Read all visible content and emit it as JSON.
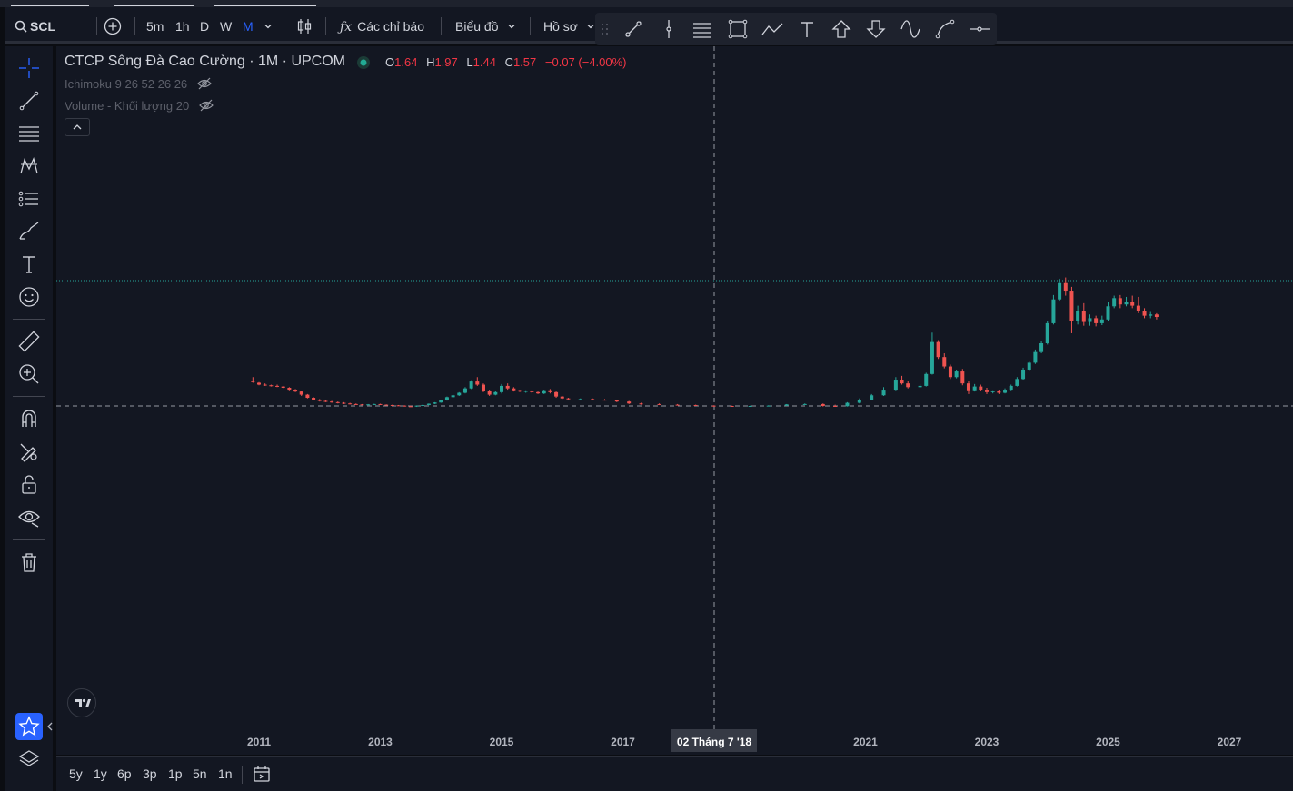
{
  "top_toolbar": {
    "symbol": "SCL",
    "intervals": [
      "5m",
      "1h",
      "D",
      "W",
      "M"
    ],
    "active_interval": "M",
    "indicators_label": "Các chỉ báo",
    "chart_label": "Biểu đồ",
    "profile_label": "Hồ sơ"
  },
  "legend": {
    "title": "CTCP Sông Đà Cao Cường · 1M · UPCOM",
    "o_label": "O",
    "o": "1.64",
    "h_label": "H",
    "h": "1.97",
    "l_label": "L",
    "l": "1.44",
    "c_label": "C",
    "c": "1.57",
    "change": "−0.07 (−4.00%)",
    "ichimoku": "Ichimoku 9 26 52 26 26",
    "volume": "Volume - Khối lượng 20",
    "up_color": "#26a69a",
    "down_color": "#ef5350"
  },
  "time_axis": {
    "labels": [
      "2011",
      "2013",
      "2015",
      "2017",
      "2021",
      "2023",
      "2025",
      "2027"
    ],
    "crosshair_label": "02 Tháng 7 '18"
  },
  "range_buttons": [
    "5y",
    "1y",
    "6p",
    "3p",
    "1p",
    "5n",
    "1n"
  ],
  "chart_data": {
    "type": "candlestick",
    "instrument": "SCL",
    "interval": "1M",
    "last_bar": {
      "open": 1.64,
      "high": 1.97,
      "low": 1.44,
      "close": 1.57,
      "change": -0.07,
      "change_pct": -4.0
    },
    "x_ticks": [
      "2011",
      "2013",
      "2015",
      "2017",
      "2021",
      "2023",
      "2025",
      "2027"
    ],
    "candles": [
      [
        2010.9,
        4.0,
        4.6,
        3.8,
        3.7
      ],
      [
        2011.0,
        3.7,
        3.8,
        3.4,
        3.3
      ],
      [
        2011.1,
        3.4,
        3.6,
        3.3,
        3.2
      ],
      [
        2011.2,
        3.3,
        3.4,
        3.2,
        3.1
      ],
      [
        2011.3,
        3.2,
        3.4,
        3.1,
        3.0
      ],
      [
        2011.4,
        3.1,
        3.2,
        2.9,
        2.8
      ],
      [
        2011.5,
        2.9,
        3.0,
        2.6,
        2.5
      ],
      [
        2011.6,
        2.6,
        2.7,
        2.3,
        2.2
      ],
      [
        2011.7,
        2.3,
        2.4,
        1.8,
        1.6
      ],
      [
        2011.8,
        1.8,
        1.9,
        1.3,
        1.2
      ],
      [
        2011.9,
        1.3,
        1.4,
        1.0,
        0.9
      ],
      [
        2012.0,
        1.0,
        1.1,
        0.8,
        0.7
      ],
      [
        2012.1,
        0.8,
        0.9,
        0.7,
        0.6
      ],
      [
        2012.2,
        0.7,
        0.8,
        0.6,
        0.5
      ],
      [
        2012.3,
        0.6,
        0.7,
        0.5,
        0.4
      ],
      [
        2012.4,
        0.5,
        0.6,
        0.4,
        0.3
      ],
      [
        2012.5,
        0.4,
        0.5,
        0.3,
        0.25
      ],
      [
        2012.6,
        0.3,
        0.4,
        0.25,
        0.2
      ],
      [
        2012.7,
        0.25,
        0.3,
        0.2,
        0.15
      ],
      [
        2012.8,
        0.2,
        0.3,
        0.25,
        0.15
      ],
      [
        2012.9,
        0.25,
        0.35,
        0.3,
        0.2
      ],
      [
        2013.0,
        0.3,
        0.35,
        0.2,
        0.15
      ],
      [
        2013.1,
        0.2,
        0.25,
        0.15,
        0.1
      ],
      [
        2013.2,
        0.15,
        0.2,
        0.1,
        0.05
      ],
      [
        2013.3,
        0.1,
        0.15,
        0.05,
        0.0
      ],
      [
        2013.4,
        0.05,
        0.1,
        -0.05,
        -0.1
      ],
      [
        2013.5,
        -0.05,
        0.05,
        -0.1,
        -0.15
      ],
      [
        2013.6,
        -0.1,
        0.0,
        0.05,
        -0.15
      ],
      [
        2013.7,
        0.05,
        0.2,
        0.15,
        0.0
      ],
      [
        2013.8,
        0.15,
        0.4,
        0.35,
        0.1
      ],
      [
        2013.9,
        0.35,
        0.6,
        0.55,
        0.3
      ],
      [
        2014.0,
        0.55,
        1.0,
        0.9,
        0.5
      ],
      [
        2014.1,
        0.9,
        1.5,
        1.4,
        0.85
      ],
      [
        2014.2,
        1.4,
        1.8,
        1.7,
        1.3
      ],
      [
        2014.3,
        1.7,
        2.2,
        2.1,
        1.6
      ],
      [
        2014.4,
        2.1,
        3.0,
        2.8,
        2.0
      ],
      [
        2014.5,
        2.8,
        4.1,
        3.9,
        2.7
      ],
      [
        2014.6,
        3.9,
        4.6,
        3.4,
        3.2
      ],
      [
        2014.7,
        3.4,
        3.6,
        2.4,
        2.2
      ],
      [
        2014.8,
        2.4,
        2.6,
        1.8,
        1.6
      ],
      [
        2014.9,
        1.8,
        2.4,
        2.2,
        1.7
      ],
      [
        2015.0,
        2.2,
        3.5,
        3.2,
        2.0
      ],
      [
        2015.1,
        3.2,
        3.6,
        2.8,
        2.6
      ],
      [
        2015.2,
        2.8,
        3.0,
        2.5,
        2.3
      ],
      [
        2015.3,
        2.5,
        2.6,
        2.3,
        2.2
      ],
      [
        2015.4,
        2.3,
        2.5,
        2.4,
        2.1
      ],
      [
        2015.5,
        2.4,
        2.5,
        2.2,
        2.0
      ],
      [
        2015.6,
        2.2,
        2.3,
        2.0,
        1.9
      ],
      [
        2015.7,
        2.0,
        2.6,
        2.5,
        1.9
      ],
      [
        2015.8,
        2.5,
        2.7,
        2.2,
        2.0
      ],
      [
        2015.9,
        2.2,
        2.3,
        1.5,
        1.3
      ],
      [
        2016.0,
        1.5,
        1.6,
        1.2,
        1.1
      ],
      [
        2016.1,
        1.2,
        1.3,
        1.1,
        1.0
      ],
      [
        2016.3,
        1.1,
        1.2,
        1.1,
        1.0
      ],
      [
        2016.5,
        1.1,
        1.2,
        1.0,
        0.95
      ],
      [
        2016.7,
        1.0,
        1.1,
        0.9,
        0.85
      ],
      [
        2016.9,
        0.9,
        1.0,
        0.7,
        0.6
      ],
      [
        2017.1,
        0.7,
        0.8,
        0.4,
        0.3
      ],
      [
        2017.3,
        0.4,
        0.5,
        0.3,
        0.2
      ],
      [
        2017.6,
        0.3,
        0.4,
        0.2,
        0.15
      ],
      [
        2017.9,
        0.2,
        0.3,
        0.15,
        0.1
      ],
      [
        2018.2,
        0.15,
        0.2,
        0.05,
        0.0
      ],
      [
        2018.5,
        0.05,
        0.1,
        0.0,
        -0.1
      ],
      [
        2018.8,
        0.0,
        0.05,
        -0.05,
        -0.1
      ],
      [
        2019.1,
        -0.05,
        0.05,
        0.0,
        -0.1
      ],
      [
        2019.4,
        0.0,
        0.1,
        0.05,
        -0.05
      ],
      [
        2019.7,
        0.05,
        0.3,
        0.25,
        0.0
      ],
      [
        2020.0,
        0.25,
        0.4,
        0.3,
        0.2
      ],
      [
        2020.3,
        0.3,
        0.4,
        0.0,
        -0.1
      ],
      [
        2020.5,
        0.0,
        0.2,
        -0.05,
        -0.1
      ],
      [
        2020.7,
        -0.05,
        0.6,
        0.5,
        -0.1
      ],
      [
        2020.9,
        0.5,
        1.2,
        1.0,
        0.4
      ],
      [
        2021.1,
        1.0,
        1.9,
        1.7,
        0.9
      ],
      [
        2021.3,
        1.7,
        3.0,
        2.6,
        1.6
      ],
      [
        2021.5,
        2.6,
        4.6,
        4.2,
        2.5
      ],
      [
        2021.6,
        4.2,
        4.8,
        3.6,
        3.4
      ],
      [
        2021.7,
        3.6,
        4.0,
        3.0,
        2.8
      ],
      [
        2021.9,
        3.0,
        3.5,
        3.2,
        2.9
      ],
      [
        2022.0,
        3.2,
        5.3,
        5.1,
        3.1
      ],
      [
        2022.1,
        5.1,
        11.7,
        10.2,
        5.0
      ],
      [
        2022.2,
        10.2,
        10.5,
        7.8,
        7.5
      ],
      [
        2022.3,
        7.8,
        8.4,
        6.3,
        6.0
      ],
      [
        2022.4,
        6.3,
        6.6,
        4.6,
        4.3
      ],
      [
        2022.5,
        4.6,
        5.8,
        5.5,
        4.4
      ],
      [
        2022.6,
        5.5,
        5.9,
        3.6,
        3.3
      ],
      [
        2022.7,
        3.6,
        4.0,
        2.5,
        1.9
      ],
      [
        2022.8,
        2.5,
        3.5,
        3.1,
        2.3
      ],
      [
        2022.9,
        3.1,
        3.4,
        2.6,
        2.4
      ],
      [
        2023.0,
        2.6,
        2.9,
        2.2,
        1.9
      ],
      [
        2023.1,
        2.2,
        2.5,
        2.4,
        2.0
      ],
      [
        2023.2,
        2.4,
        2.6,
        2.1,
        1.9
      ],
      [
        2023.3,
        2.1,
        2.8,
        2.6,
        2.0
      ],
      [
        2023.4,
        2.6,
        3.4,
        3.2,
        2.5
      ],
      [
        2023.5,
        3.2,
        4.6,
        4.3,
        3.1
      ],
      [
        2023.6,
        4.3,
        6.1,
        5.8,
        4.2
      ],
      [
        2023.7,
        5.8,
        7.2,
        6.9,
        5.6
      ],
      [
        2023.8,
        6.9,
        9.0,
        8.6,
        6.7
      ],
      [
        2023.9,
        8.6,
        10.4,
        10.0,
        8.4
      ],
      [
        2024.0,
        10.0,
        13.6,
        13.2,
        9.8
      ],
      [
        2024.1,
        13.2,
        17.7,
        17.0,
        13.0
      ],
      [
        2024.2,
        17.0,
        20.3,
        19.6,
        16.8
      ],
      [
        2024.3,
        19.6,
        20.5,
        18.4,
        17.6
      ],
      [
        2024.4,
        18.4,
        19.0,
        13.6,
        11.6
      ],
      [
        2024.5,
        13.6,
        16.0,
        15.2,
        13.0
      ],
      [
        2024.6,
        15.2,
        16.4,
        13.4,
        12.8
      ],
      [
        2024.7,
        13.4,
        14.6,
        14.0,
        12.8
      ],
      [
        2024.8,
        14.0,
        14.4,
        13.2,
        12.7
      ],
      [
        2024.9,
        13.2,
        14.4,
        13.8,
        12.9
      ],
      [
        2025.0,
        13.8,
        16.6,
        15.9,
        13.6
      ],
      [
        2025.1,
        15.9,
        17.6,
        17.2,
        15.6
      ],
      [
        2025.2,
        17.2,
        17.7,
        16.2,
        15.6
      ],
      [
        2025.3,
        16.2,
        17.4,
        16.6,
        15.9
      ],
      [
        2025.4,
        16.6,
        17.6,
        16.0,
        15.6
      ],
      [
        2025.5,
        16.0,
        17.4,
        15.2,
        14.8
      ],
      [
        2025.6,
        15.2,
        15.6,
        14.4,
        14.0
      ],
      [
        2025.7,
        14.4,
        15.0,
        14.6,
        14.0
      ],
      [
        2025.8,
        14.6,
        14.8,
        14.2,
        13.8
      ]
    ]
  }
}
